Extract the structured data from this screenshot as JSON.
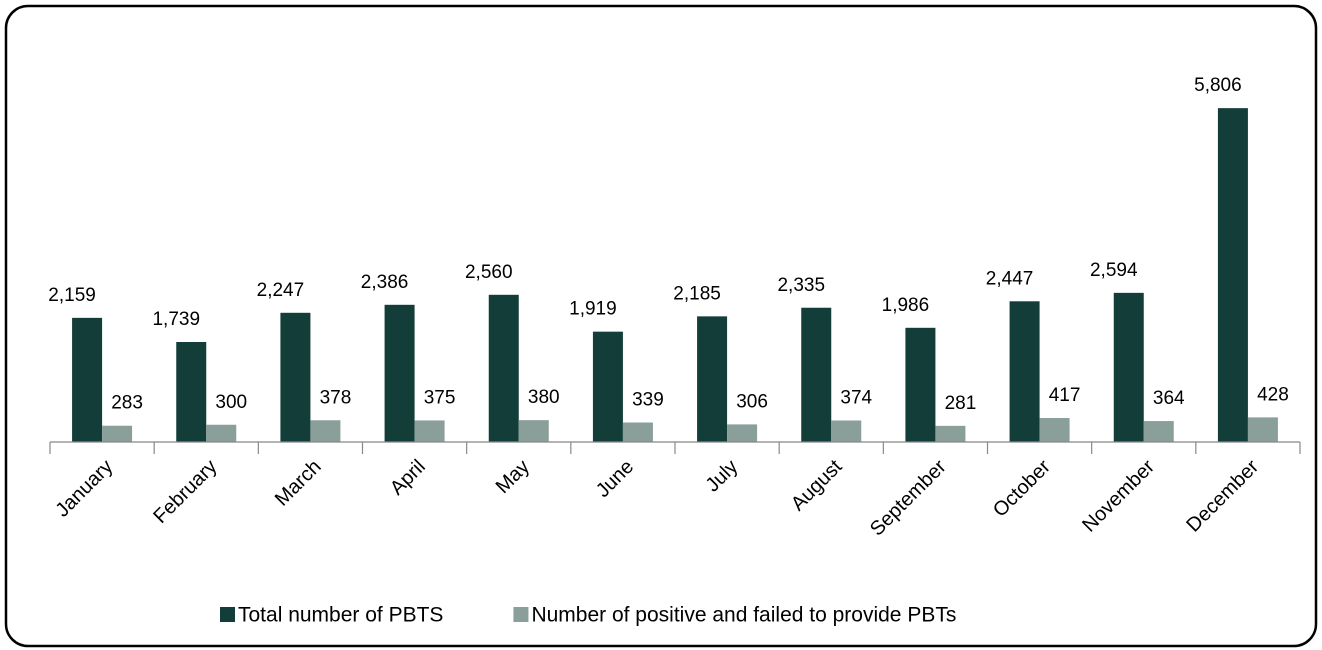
{
  "chart_data": {
    "type": "bar",
    "categories": [
      "January",
      "February",
      "March",
      "April",
      "May",
      "June",
      "July",
      "August",
      "September",
      "October",
      "November",
      "December"
    ],
    "series": [
      {
        "name": "Total number of PBTS",
        "color": "#133d38",
        "values": [
          2159,
          1739,
          2247,
          2386,
          2560,
          1919,
          2185,
          2335,
          1986,
          2447,
          2594,
          5806
        ],
        "value_labels": [
          "2,159",
          "1,739",
          "2,247",
          "2,386",
          "2,560",
          "1,919",
          "2,185",
          "2,335",
          "1,986",
          "2,447",
          "2,594",
          "5,806"
        ]
      },
      {
        "name": "Number of positive and failed to provide PBTs",
        "color": "#8a9e9a",
        "values": [
          283,
          300,
          378,
          375,
          380,
          339,
          306,
          374,
          281,
          417,
          364,
          428
        ]
      }
    ],
    "ylim": [
      0,
      6000
    ]
  }
}
